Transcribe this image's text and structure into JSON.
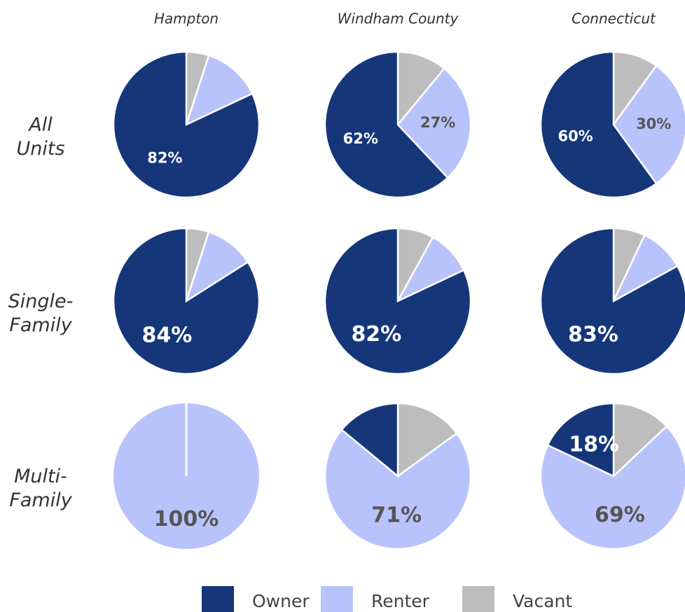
{
  "columns": [
    "Hampton",
    "Windham County",
    "Connecticut"
  ],
  "rows": [
    "All Units",
    "Single-Family",
    "Multi-Family"
  ],
  "chart_data": [
    {
      "type": "pie",
      "categories": [
        "Owner",
        "Renter",
        "Vacant"
      ],
      "values": [
        82,
        13,
        5
      ],
      "value_labels": [
        "82%",
        null,
        null
      ],
      "colors": [
        "#16367a",
        "#b9c3fb",
        "#bdbdbd"
      ]
    },
    {
      "type": "pie",
      "categories": [
        "Owner",
        "Renter",
        "Vacant"
      ],
      "values": [
        62,
        27,
        11
      ],
      "value_labels": [
        "62%",
        "27%",
        null
      ],
      "colors": [
        "#16367a",
        "#b9c3fb",
        "#bdbdbd"
      ]
    },
    {
      "type": "pie",
      "categories": [
        "Owner",
        "Renter",
        "Vacant"
      ],
      "values": [
        60,
        30,
        10
      ],
      "value_labels": [
        "60%",
        "30%",
        null
      ],
      "colors": [
        "#16367a",
        "#b9c3fb",
        "#bdbdbd"
      ]
    },
    {
      "type": "pie",
      "categories": [
        "Owner",
        "Renter",
        "Vacant"
      ],
      "values": [
        84,
        11,
        5
      ],
      "value_labels": [
        "84%",
        null,
        null
      ],
      "colors": [
        "#16367a",
        "#b9c3fb",
        "#bdbdbd"
      ]
    },
    {
      "type": "pie",
      "categories": [
        "Owner",
        "Renter",
        "Vacant"
      ],
      "values": [
        82,
        10,
        8
      ],
      "value_labels": [
        "82%",
        null,
        null
      ],
      "colors": [
        "#16367a",
        "#b9c3fb",
        "#bdbdbd"
      ]
    },
    {
      "type": "pie",
      "categories": [
        "Owner",
        "Renter",
        "Vacant"
      ],
      "values": [
        83,
        10,
        7
      ],
      "value_labels": [
        "83%",
        null,
        null
      ],
      "colors": [
        "#16367a",
        "#b9c3fb",
        "#bdbdbd"
      ]
    },
    {
      "type": "pie",
      "categories": [
        "Owner",
        "Renter",
        "Vacant"
      ],
      "values": [
        0,
        100,
        0
      ],
      "value_labels": [
        null,
        "100%",
        null
      ],
      "colors": [
        "#16367a",
        "#b9c3fb",
        "#bdbdbd"
      ]
    },
    {
      "type": "pie",
      "categories": [
        "Owner",
        "Renter",
        "Vacant"
      ],
      "values": [
        14,
        71,
        15
      ],
      "value_labels": [
        null,
        "71%",
        null
      ],
      "colors": [
        "#16367a",
        "#b9c3fb",
        "#bdbdbd"
      ]
    },
    {
      "type": "pie",
      "categories": [
        "Owner",
        "Renter",
        "Vacant"
      ],
      "values": [
        18,
        69,
        13
      ],
      "value_labels": [
        "18%",
        "69%",
        null
      ],
      "colors": [
        "#16367a",
        "#b9c3fb",
        "#bdbdbd"
      ]
    }
  ]
}
